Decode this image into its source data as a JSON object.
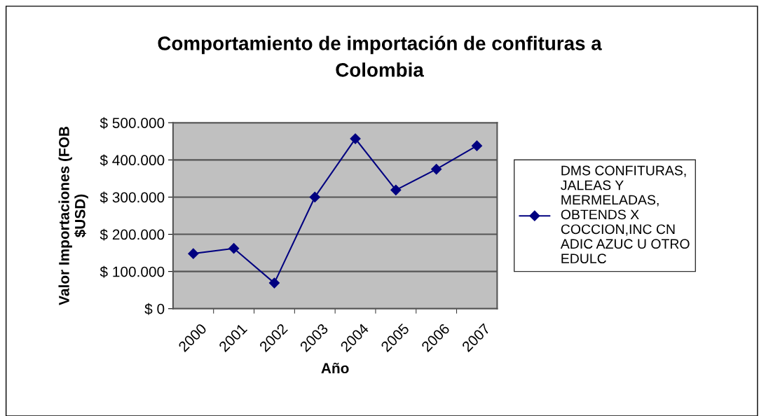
{
  "chart_data": {
    "type": "line",
    "title": "Comportamiento de importación de confituras a Colombia",
    "xlabel": "Año",
    "ylabel": "Valor Importaciones (FOB $USD)",
    "categories": [
      "2000",
      "2001",
      "2002",
      "2003",
      "2004",
      "2005",
      "2006",
      "2007"
    ],
    "series": [
      {
        "name": "DMS CONFITURAS, JALEAS Y MERMELADAS, OBTENDS X COCCION,INC CN ADIC AZUC U OTRO EDULC",
        "color": "#000080",
        "values": [
          148000,
          162000,
          69000,
          300000,
          457000,
          319000,
          375000,
          438000
        ]
      }
    ],
    "ylim": [
      0,
      500000
    ],
    "yticks": [
      {
        "value": 0,
        "label": "$ 0"
      },
      {
        "value": 100000,
        "label": "$ 100.000"
      },
      {
        "value": 200000,
        "label": "$ 200.000"
      },
      {
        "value": 300000,
        "label": "$ 300.000"
      },
      {
        "value": 400000,
        "label": "$ 400.000"
      },
      {
        "value": 500000,
        "label": "$ 500.000"
      }
    ],
    "grid": "y",
    "legend": "right",
    "marker": "diamond",
    "line_style": "solid"
  }
}
